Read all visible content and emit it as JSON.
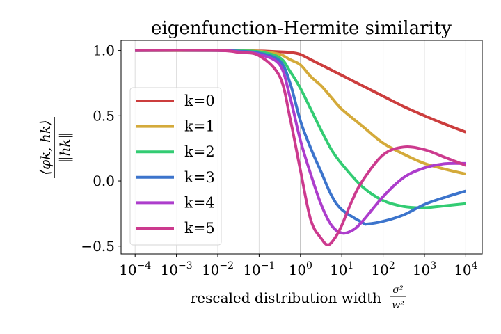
{
  "chart_data": {
    "type": "line",
    "title": "eigenfunction-Hermite similarity",
    "xlabel": "rescaled distribution width",
    "xlabel_fraction": {
      "numerator": "σ²",
      "denominator": "w²"
    },
    "ylabel": {
      "numerator": "⟨φk, hk⟩",
      "denominator": "‖hk‖",
      "sub": "k"
    },
    "xscale": "log",
    "xlim": [
      4.57e-05,
      25000
    ],
    "ylim": [
      -0.56,
      1.078
    ],
    "grid": "x-major",
    "legend_position": "center-left",
    "x_ticks": [
      {
        "value": 0.0001,
        "base": "10",
        "exp": "−4"
      },
      {
        "value": 0.001,
        "base": "10",
        "exp": "−3"
      },
      {
        "value": 0.01,
        "base": "10",
        "exp": "−2"
      },
      {
        "value": 0.1,
        "base": "10",
        "exp": "−1"
      },
      {
        "value": 1,
        "base": "10",
        "exp": "0"
      },
      {
        "value": 10,
        "base": "10",
        "exp": "1"
      },
      {
        "value": 100,
        "base": "10",
        "exp": "2"
      },
      {
        "value": 1000,
        "base": "10",
        "exp": "3"
      },
      {
        "value": 10000,
        "base": "10",
        "exp": "4"
      }
    ],
    "y_ticks": [
      {
        "value": 1.0,
        "label": "1.0"
      },
      {
        "value": 0.5,
        "label": "0.5"
      },
      {
        "value": 0.0,
        "label": "0.0"
      },
      {
        "value": -0.5,
        "label": "−0.5"
      }
    ],
    "series": [
      {
        "name": "k=0",
        "color": "#cc3d3d",
        "points": [
          [
            0.0001,
            1.0
          ],
          [
            0.01,
            1.0
          ],
          [
            0.0316,
            1.0
          ],
          [
            0.1,
            0.997
          ],
          [
            0.316,
            0.99
          ],
          [
            0.562,
            0.985
          ],
          [
            1,
            0.97
          ],
          [
            1.78,
            0.93
          ],
          [
            3.16,
            0.89
          ],
          [
            10,
            0.81
          ],
          [
            31.6,
            0.73
          ],
          [
            100,
            0.65
          ],
          [
            316,
            0.57
          ],
          [
            1000,
            0.5
          ],
          [
            3162,
            0.435
          ],
          [
            10000,
            0.375
          ]
        ]
      },
      {
        "name": "k=1",
        "color": "#d4aa3a",
        "points": [
          [
            0.0001,
            1.0
          ],
          [
            0.01,
            1.0
          ],
          [
            0.0316,
            0.999
          ],
          [
            0.1,
            0.995
          ],
          [
            0.316,
            0.97
          ],
          [
            0.562,
            0.93
          ],
          [
            1,
            0.89
          ],
          [
            1.78,
            0.8
          ],
          [
            3.16,
            0.73
          ],
          [
            5.62,
            0.64
          ],
          [
            10,
            0.55
          ],
          [
            31.6,
            0.42
          ],
          [
            100,
            0.29
          ],
          [
            316,
            0.205
          ],
          [
            1000,
            0.134
          ],
          [
            3162,
            0.09
          ],
          [
            10000,
            0.053
          ]
        ]
      },
      {
        "name": "k=2",
        "color": "#33cc73",
        "points": [
          [
            0.0001,
            1.0
          ],
          [
            0.01,
            1.0
          ],
          [
            0.0316,
            0.998
          ],
          [
            0.1,
            0.99
          ],
          [
            0.316,
            0.945
          ],
          [
            0.562,
            0.84
          ],
          [
            1,
            0.71
          ],
          [
            1.78,
            0.55
          ],
          [
            3.16,
            0.39
          ],
          [
            5.62,
            0.24
          ],
          [
            10,
            0.13
          ],
          [
            31.6,
            -0.045
          ],
          [
            100,
            -0.15
          ],
          [
            316,
            -0.196
          ],
          [
            1000,
            -0.205
          ],
          [
            3162,
            -0.19
          ],
          [
            10000,
            -0.175
          ]
        ]
      },
      {
        "name": "k=3",
        "color": "#3c74cc",
        "points": [
          [
            0.0001,
            1.0
          ],
          [
            0.01,
            1.0
          ],
          [
            0.0316,
            0.995
          ],
          [
            0.1,
            0.98
          ],
          [
            0.316,
            0.92
          ],
          [
            0.562,
            0.75
          ],
          [
            1,
            0.46
          ],
          [
            1.78,
            0.25
          ],
          [
            3.16,
            0.07
          ],
          [
            5.62,
            -0.11
          ],
          [
            10,
            -0.22
          ],
          [
            31.6,
            -0.32
          ],
          [
            42,
            -0.33
          ],
          [
            100,
            -0.31
          ],
          [
            316,
            -0.26
          ],
          [
            1000,
            -0.18
          ],
          [
            3162,
            -0.125
          ],
          [
            10000,
            -0.077
          ]
        ]
      },
      {
        "name": "k=4",
        "color": "#ad3dcc",
        "points": [
          [
            0.0001,
            1.0
          ],
          [
            0.01,
            1.0
          ],
          [
            0.0316,
            0.99
          ],
          [
            0.1,
            0.97
          ],
          [
            0.316,
            0.89
          ],
          [
            0.562,
            0.64
          ],
          [
            1,
            0.31
          ],
          [
            1.78,
            0.05
          ],
          [
            3.16,
            -0.18
          ],
          [
            5.62,
            -0.34
          ],
          [
            10,
            -0.4
          ],
          [
            17.8,
            -0.38
          ],
          [
            31.6,
            -0.31
          ],
          [
            100,
            -0.12
          ],
          [
            316,
            0.027
          ],
          [
            1000,
            0.1
          ],
          [
            3162,
            0.132
          ],
          [
            10000,
            0.134
          ]
        ]
      },
      {
        "name": "k=5",
        "color": "#cc3a8e",
        "points": [
          [
            0.0001,
            1.0
          ],
          [
            0.01,
            1.0
          ],
          [
            0.0316,
            0.985
          ],
          [
            0.1,
            0.96
          ],
          [
            0.316,
            0.8
          ],
          [
            0.562,
            0.48
          ],
          [
            1,
            0.08
          ],
          [
            1.78,
            -0.3
          ],
          [
            3.16,
            -0.44
          ],
          [
            4.68,
            -0.49
          ],
          [
            7.08,
            -0.43
          ],
          [
            10,
            -0.34
          ],
          [
            17.8,
            -0.15
          ],
          [
            31.6,
            0.0
          ],
          [
            100,
            0.2
          ],
          [
            316,
            0.26
          ],
          [
            1000,
            0.24
          ],
          [
            3162,
            0.18
          ],
          [
            10000,
            0.12
          ]
        ]
      }
    ]
  }
}
